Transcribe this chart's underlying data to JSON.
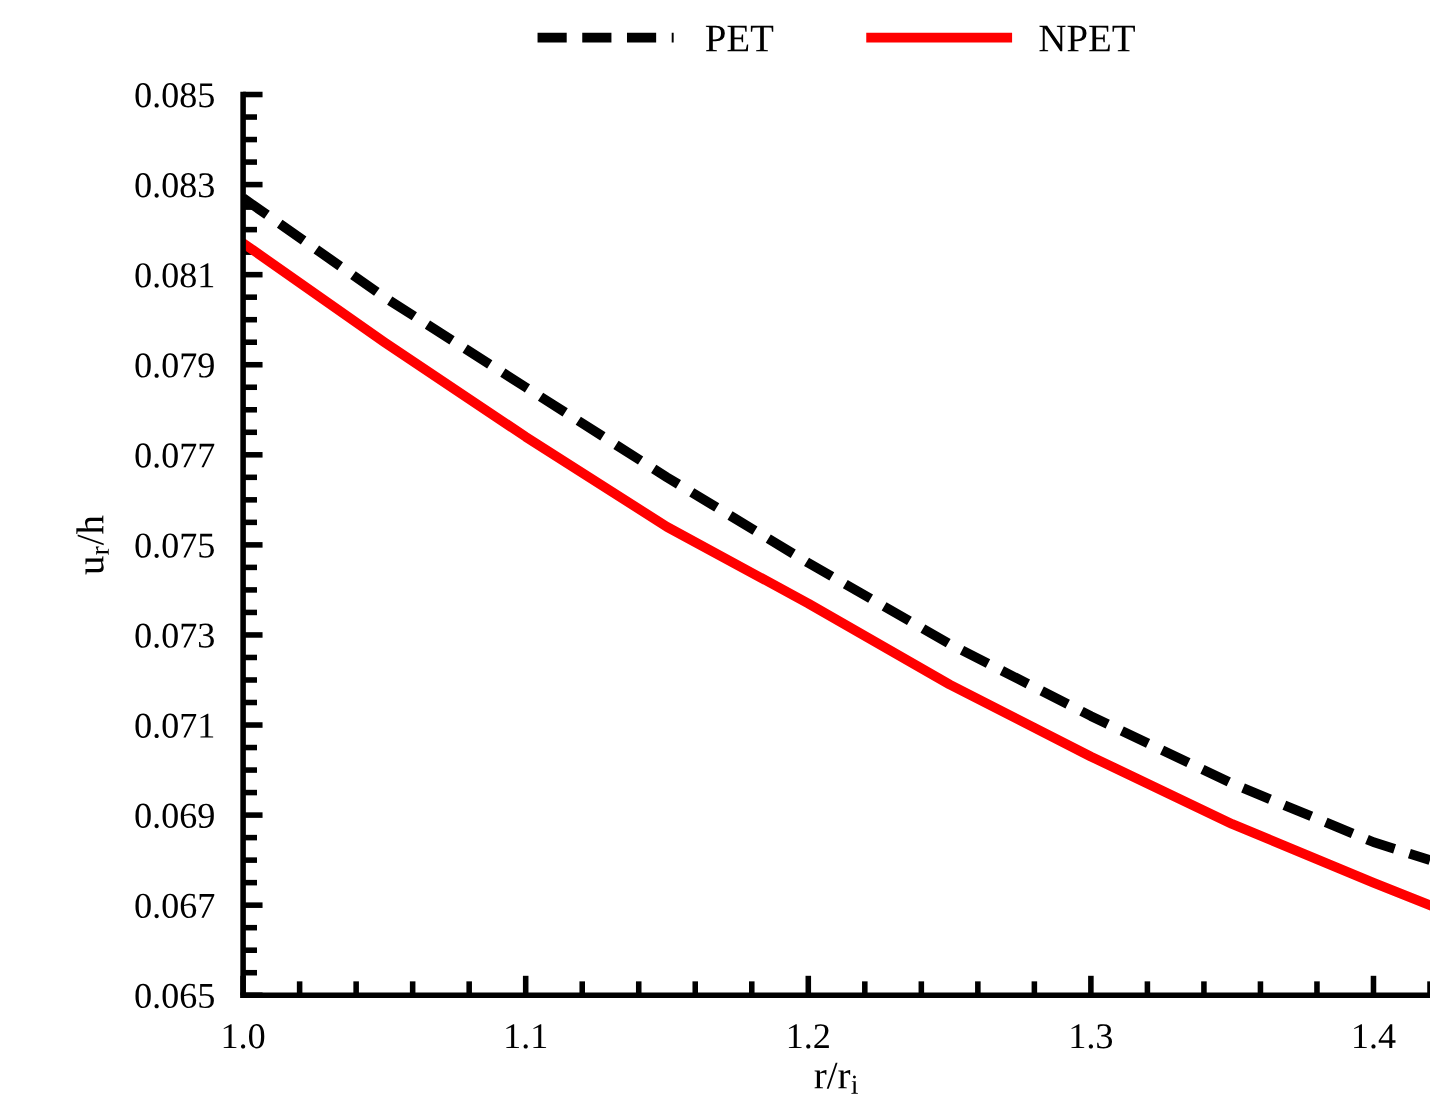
{
  "chart_data": {
    "type": "line",
    "xlabel": "r/r$_{i}$",
    "ylabel": "u$_{r}$/h",
    "x": [
      1.0,
      1.05,
      1.1,
      1.15,
      1.2,
      1.25,
      1.3,
      1.35,
      1.4,
      1.42
    ],
    "series": [
      {
        "name": "PET",
        "color": "#000000",
        "line_style": "dashed",
        "values": [
          0.0827,
          0.0805,
          0.0785,
          0.0765,
          0.0746,
          0.0728,
          0.0712,
          0.0697,
          0.0684,
          0.068
        ]
      },
      {
        "name": "NPET",
        "color": "#ff0000",
        "line_style": "solid",
        "values": [
          0.0817,
          0.0795,
          0.0774,
          0.0754,
          0.0737,
          0.0719,
          0.0703,
          0.0688,
          0.0675,
          0.067
        ]
      }
    ],
    "xlim": [
      1.0,
      1.42
    ],
    "xticks": [
      {
        "value": 1.0,
        "label": "1.0"
      },
      1.1,
      1.2,
      1.3,
      1.4
    ],
    "ylim": [
      0.065,
      0.085
    ],
    "yticks": [
      0.065,
      0.067,
      0.069,
      0.071,
      0.073,
      0.075,
      0.077,
      0.079,
      0.081,
      0.083,
      0.085
    ],
    "grid": false,
    "legend": "top",
    "marker": "none"
  }
}
